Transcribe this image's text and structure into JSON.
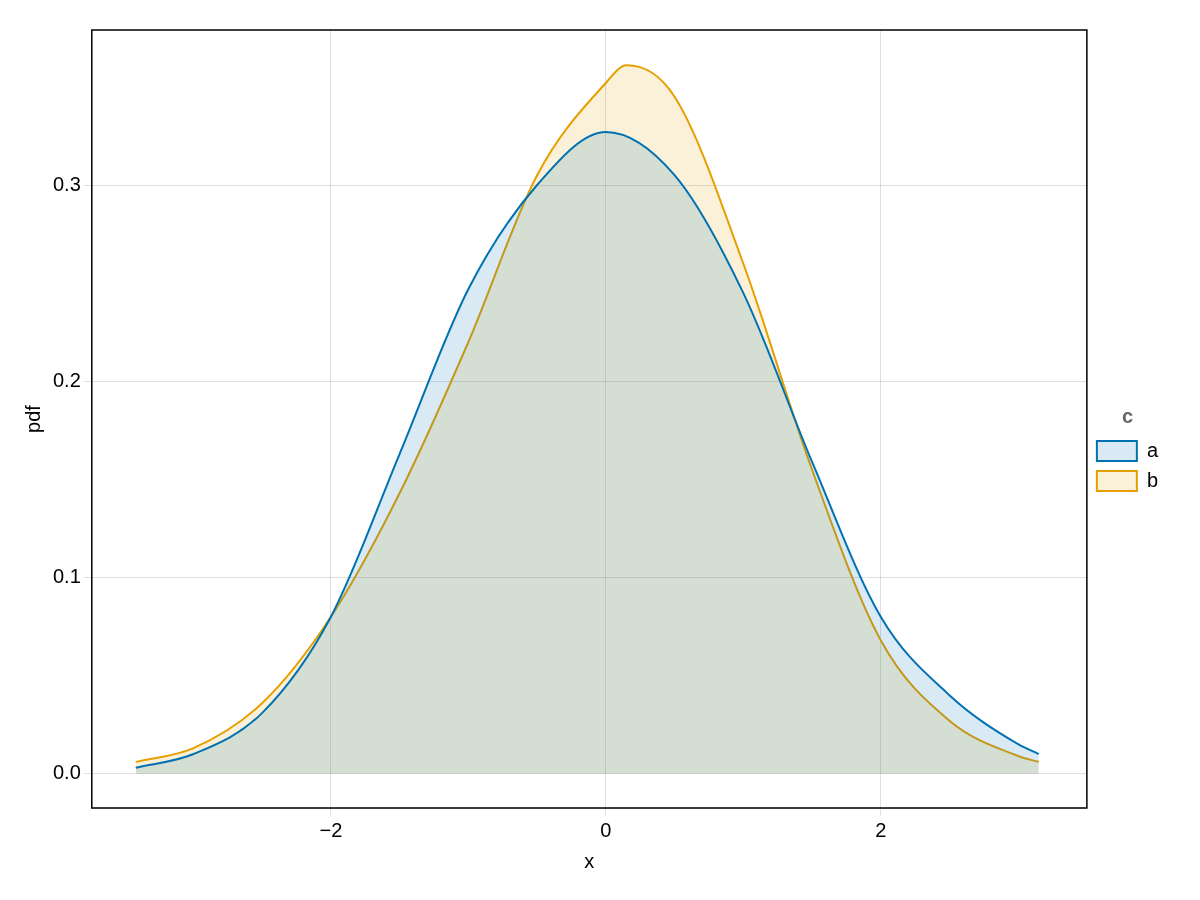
{
  "chart_data": {
    "type": "area",
    "xlabel": "x",
    "ylabel": "pdf",
    "legend_title": "c",
    "legend": "right",
    "grid": true,
    "xlim": [
      -3.74,
      3.5
    ],
    "xticks": [
      -2,
      0,
      2
    ],
    "ylim": [
      -0.0175,
      0.379
    ],
    "yticks": [
      {
        "value": 0,
        "label": "0.0"
      },
      {
        "value": 0.1,
        "label": "0.1"
      },
      {
        "value": 0.2,
        "label": "0.2"
      },
      {
        "value": 0.3,
        "label": "0.3"
      }
    ],
    "series": [
      {
        "name": "a",
        "color": "#0072b2",
        "x": [
          -3.42,
          -3,
          -2.5,
          -2,
          -1.5,
          -1,
          -0.5,
          0,
          0.5,
          1,
          1.5,
          2,
          2.5,
          3,
          3.15
        ],
        "values": [
          0.003,
          0.01,
          0.031,
          0.08,
          0.163,
          0.247,
          0.3,
          0.327,
          0.305,
          0.245,
          0.159,
          0.08,
          0.04,
          0.015,
          0.01
        ]
      },
      {
        "name": "b",
        "color": "#e69f00",
        "x": [
          -3.42,
          -3,
          -2.5,
          -2,
          -1.5,
          -1,
          -0.5,
          0,
          0.15,
          0.5,
          1,
          1.5,
          2,
          2.5,
          3,
          3.15
        ],
        "values": [
          0.006,
          0.013,
          0.036,
          0.08,
          0.143,
          0.22,
          0.305,
          0.352,
          0.361,
          0.345,
          0.26,
          0.155,
          0.068,
          0.027,
          0.009,
          0.006
        ]
      }
    ]
  }
}
